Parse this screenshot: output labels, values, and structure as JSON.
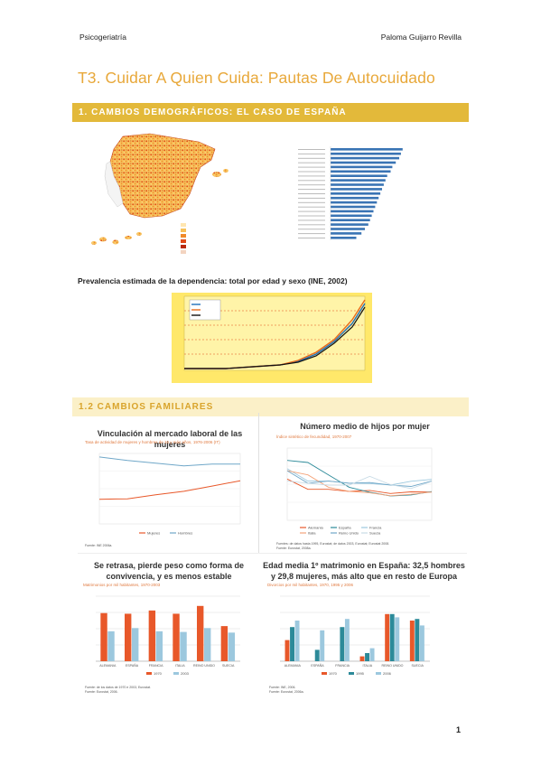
{
  "header": {
    "left": "Psicogeriatría",
    "right": "Paloma Guijarro Revilla"
  },
  "title": "T3. Cuidar A Quien Cuida: Pautas De Autocuidado",
  "section1": {
    "label": "1. CAMBIOS DEMOGRÁFICOS: EL CASO DE ESPAÑA"
  },
  "section2": {
    "label": "1.2 CAMBIOS FAMILIARES"
  },
  "prevalence": {
    "title": "Prevalencia estimada de la dependencia: total por edad y sexo (INE, 2002)"
  },
  "charts": {
    "laboral": {
      "title": "Vinculación al mercado laboral de las mujeres",
      "subtitle": "Tasa de actividad de mujeres y hombres de 16 y más años, 1976-2006 (IT)",
      "source": "Fuente: INE 2006a.",
      "legend": [
        "Mujeres",
        "Hombres"
      ]
    },
    "hijos": {
      "title": "Número medio de hijos por mujer",
      "subtitle": "Índice sintético de fecundidad, 1970-2007",
      "source1": "Fuentes: de datos hasta 1995, Eurostat; de datos 2003, Eurostat; Eurostat 2008.",
      "source2": "Fuente: Eurostat, 2008a.",
      "legend": [
        "Alemania",
        "España",
        "Francia",
        "Italia",
        "Reino Unido",
        "Suecia"
      ]
    },
    "convivencia": {
      "title": "Se retrasa, pierde peso como forma de convivencia, y es menos estable",
      "subtitle": "Matrimonios por mil habitantes, 1970-2003",
      "source1": "Fuente: de los datos de 1970 e 2003, Eurostat.",
      "source2": "Fuente: Eurostat, 2006.",
      "legend": [
        "1970",
        "2003"
      ]
    },
    "matrimonio": {
      "title": "Edad media 1º matrimonio en España: 32,5 hombres y 29,8 mujeres, más alto que en resto de Europa",
      "subtitle": "Divorcios por mil habitantes, 1970, 1995 y 2006",
      "source1": "Fuente: INE, 2006.",
      "source2": "Fuente: Eurostat, 2006a.",
      "legend": [
        "1970",
        "1995",
        "2006"
      ]
    }
  },
  "colors": {
    "accent": "#e3b93a",
    "accent_light": "#fbf0c8",
    "title": "#e8a83a",
    "orange": "#e8582a",
    "blue": "#6fa7c8",
    "teal": "#2c8a99",
    "light_blue": "#9cc8de"
  },
  "chart_data": [
    {
      "type": "line",
      "series": [
        {
          "name": "Mujeres",
          "values": [
            28,
            28.5,
            33,
            37,
            43,
            49
          ]
        },
        {
          "name": "Hombres",
          "values": [
            76,
            72,
            69,
            66,
            68,
            68
          ]
        }
      ],
      "ylim": [
        0,
        80
      ]
    },
    {
      "type": "line",
      "x": [
        1970,
        1975,
        1980,
        1985,
        1990,
        1995,
        2000,
        2007
      ],
      "series": [
        {
          "name": "Alemania",
          "values": [
            2.0,
            1.5,
            1.5,
            1.4,
            1.45,
            1.3,
            1.38,
            1.37
          ]
        },
        {
          "name": "España",
          "values": [
            2.9,
            2.8,
            2.2,
            1.6,
            1.36,
            1.18,
            1.23,
            1.39
          ]
        },
        {
          "name": "Francia",
          "values": [
            2.5,
            1.9,
            1.9,
            1.8,
            1.78,
            1.71,
            1.89,
            1.98
          ]
        },
        {
          "name": "Italia",
          "values": [
            2.4,
            2.2,
            1.6,
            1.4,
            1.33,
            1.19,
            1.26,
            1.37
          ]
        },
        {
          "name": "Reino Unido",
          "values": [
            2.4,
            1.8,
            1.9,
            1.8,
            1.83,
            1.71,
            1.64,
            1.9
          ]
        },
        {
          "name": "Suecia",
          "values": [
            1.9,
            1.8,
            1.7,
            1.7,
            2.13,
            1.73,
            1.54,
            1.88
          ]
        }
      ],
      "ylim": [
        0,
        3.5
      ]
    },
    {
      "type": "bar",
      "categories": [
        "ALEMANIA",
        "ESPAÑA",
        "FRANCIA",
        "ITALIA",
        "REINO UNIDO",
        "SUECIA"
      ],
      "series": [
        {
          "name": "1970",
          "values": [
            7.4,
            7.3,
            7.8,
            7.3,
            8.5,
            5.4
          ]
        },
        {
          "name": "2003",
          "values": [
            4.6,
            5.1,
            4.6,
            4.5,
            5.1,
            4.4
          ]
        }
      ],
      "ylim": [
        0,
        10
      ]
    },
    {
      "type": "bar",
      "categories": [
        "ALEMANIA",
        "ESPAÑA",
        "FRANCIA",
        "ITALIA",
        "REINO UNIDO",
        "SUECIA"
      ],
      "series": [
        {
          "name": "1970",
          "values": [
            1.3,
            0,
            0,
            0.3,
            2.9,
            2.5
          ]
        },
        {
          "name": "1995",
          "values": [
            2.1,
            0.7,
            2.1,
            0.5,
            2.9,
            2.6
          ]
        },
        {
          "name": "2006",
          "values": [
            2.5,
            1.9,
            2.6,
            0.8,
            2.7,
            2.2
          ]
        }
      ],
      "ylim": [
        0,
        4
      ]
    }
  ]
}
